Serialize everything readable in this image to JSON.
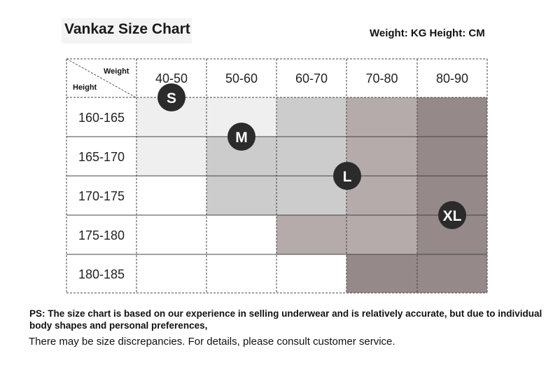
{
  "title": "Vankaz Size Chart",
  "units_label": "Weight: KG Height: CM",
  "header": {
    "weight_label": "Weight",
    "height_label": "Height"
  },
  "chart_data": {
    "type": "table",
    "title": "Vankaz Size Chart",
    "column_header_label": "Weight",
    "row_header_label": "Height",
    "columns": [
      "40-50",
      "50-60",
      "60-70",
      "70-80",
      "80-90"
    ],
    "rows": [
      "160-165",
      "165-170",
      "170-175",
      "175-180",
      "180-185"
    ],
    "cells": [
      [
        "S",
        "S",
        "M",
        "L",
        "XL"
      ],
      [
        "S",
        "M",
        "M",
        "L",
        "XL"
      ],
      [
        "",
        "M",
        "M",
        "L",
        "XL"
      ],
      [
        "",
        "",
        "L",
        "L",
        "XL"
      ],
      [
        "",
        "",
        "",
        "XL",
        "XL"
      ]
    ],
    "sizes": [
      "S",
      "M",
      "L",
      "XL"
    ],
    "size_colors": {
      "S": "#efefef",
      "M": "#cccccc",
      "L": "#b5abaa",
      "XL": "#958a89"
    }
  },
  "notes": {
    "line1": "PS: The size chart is based on our experience in selling underwear and is relatively accurate, but due to individual body shapes and personal preferences,",
    "line2": "There may be size discrepancies. For details, please consult customer service."
  }
}
